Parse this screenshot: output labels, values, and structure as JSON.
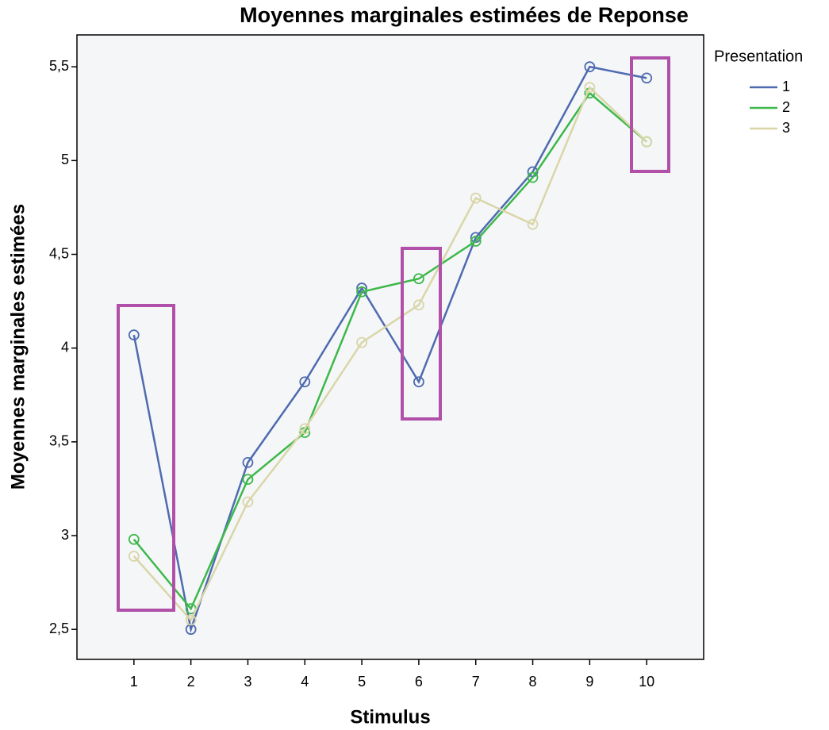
{
  "chart_data": {
    "type": "line",
    "title": "Moyennes marginales estimées de Reponse",
    "x_label": "Stimulus",
    "y_label": "Moyennes marginales estimées",
    "legend_title": "Presentation",
    "legend_position": "right",
    "categories": [
      "1",
      "2",
      "3",
      "4",
      "5",
      "6",
      "7",
      "8",
      "9",
      "10"
    ],
    "series": [
      {
        "name": "1",
        "color": "#4e6bb0",
        "values": [
          4.07,
          2.5,
          3.39,
          3.82,
          4.32,
          3.82,
          4.59,
          4.94,
          5.5,
          5.44
        ]
      },
      {
        "name": "2",
        "color": "#3db84a",
        "values": [
          2.98,
          2.61,
          3.3,
          3.55,
          4.3,
          4.37,
          4.57,
          4.91,
          5.36,
          5.1
        ]
      },
      {
        "name": "3",
        "color": "#d9d6a8",
        "values": [
          2.89,
          2.55,
          3.18,
          3.57,
          4.03,
          4.23,
          4.8,
          4.66,
          5.39,
          5.1
        ]
      }
    ],
    "ylim": [
      2.34,
      5.67
    ],
    "yticks": [
      {
        "value": 2.5,
        "label": "2,5"
      },
      3,
      {
        "value": 3.5,
        "label": "3,5"
      },
      4,
      {
        "value": 4.5,
        "label": "4,5"
      },
      5,
      {
        "value": 5.5,
        "label": "5,5"
      }
    ],
    "grid": false
  }
}
